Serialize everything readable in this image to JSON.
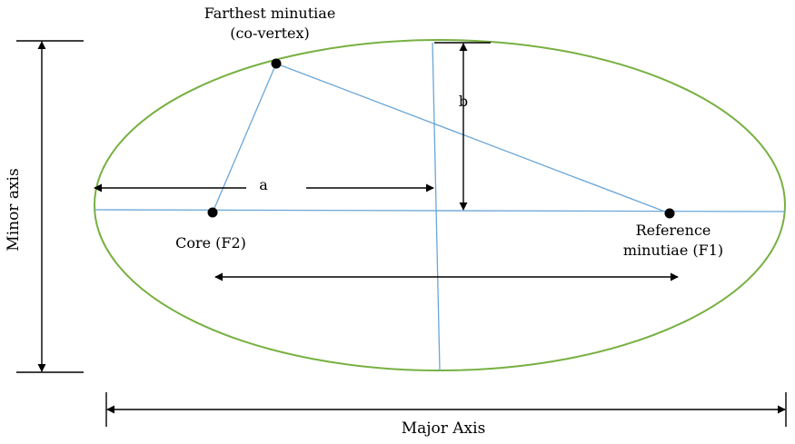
{
  "diagram": {
    "labels": {
      "farthest_line1": "Farthest minutiae",
      "farthest_line2": "(co-vertex)",
      "b": "b",
      "a": "a",
      "core": "Core (F2)",
      "reference_line1": "Reference",
      "reference_line2": "minutiae (F1)",
      "minor_axis": "Minor axis",
      "major_axis": "Major Axis"
    },
    "colors": {
      "ellipse": "#77b041",
      "construction_lines": "#6aa6d8",
      "arrows": "#000000",
      "points": "#000000"
    }
  }
}
